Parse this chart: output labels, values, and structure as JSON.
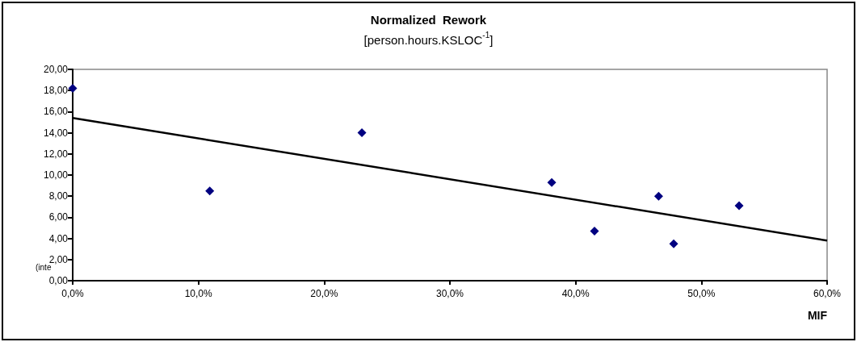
{
  "chart_data": {
    "type": "scatter",
    "title": "Normalized  Rework",
    "subtitle": "[person.hours.KSLOC$^{-1}$]",
    "xlabel": "MIF",
    "x": [
      0,
      10.9,
      23.0,
      38.1,
      41.5,
      46.6,
      47.8,
      53.0
    ],
    "series": [
      {
        "color": "#000080",
        "marker": "diamond",
        "values": [
          18.2,
          8.5,
          14.0,
          9.3,
          4.7,
          8.0,
          3.5,
          7.1
        ]
      },
      {
        "type": "line",
        "color": "#000000",
        "marker": "none",
        "line_style": "solid",
        "x": [
          0,
          60
        ],
        "values": [
          15.4,
          3.8
        ]
      }
    ],
    "xlim": [
      0,
      60
    ],
    "xticks": [
      {
        "value": 0,
        "label": "0,0%"
      },
      {
        "value": 10,
        "label": "10,0%"
      },
      {
        "value": 20,
        "label": "20,0%"
      },
      {
        "value": 30,
        "label": "30,0%"
      },
      {
        "value": 40,
        "label": "40,0%"
      },
      {
        "value": 50,
        "label": "50,0%"
      },
      {
        "value": 60,
        "label": "60,0%"
      }
    ],
    "ylim": [
      0,
      20
    ],
    "yticks": [
      {
        "value": 0,
        "label": "0,00"
      },
      {
        "value": 2,
        "label": "2,00"
      },
      {
        "value": 4,
        "label": "4,00"
      },
      {
        "value": 6,
        "label": "6,00"
      },
      {
        "value": 8,
        "label": "8,00"
      },
      {
        "value": 10,
        "label": "10,00"
      },
      {
        "value": 12,
        "label": "12,00"
      },
      {
        "value": 14,
        "label": "14,00"
      },
      {
        "value": 16,
        "label": "16,00"
      },
      {
        "value": 18,
        "label": "18,00"
      },
      {
        "value": 20,
        "label": "20,00"
      }
    ],
    "grid": false,
    "annotations": [
      "(inte"
    ]
  }
}
